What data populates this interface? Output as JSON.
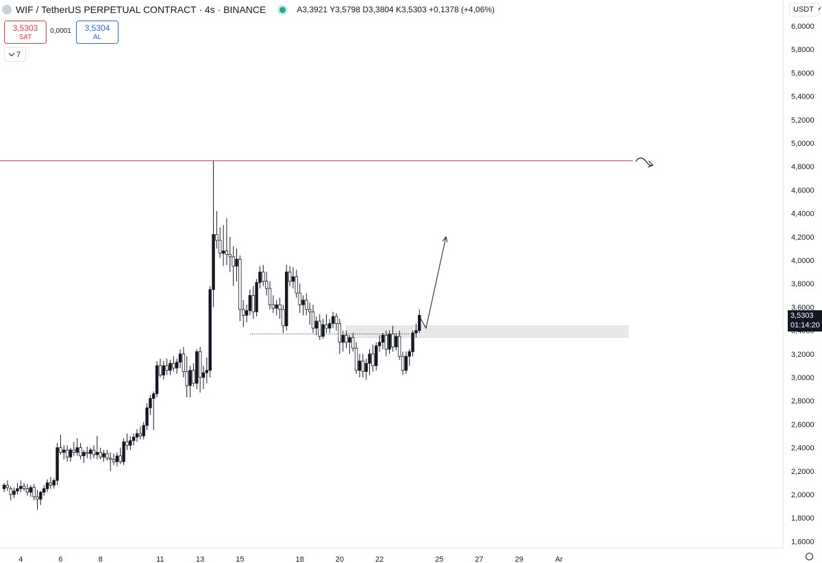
{
  "header": {
    "title": "WIF / TetherUS PERPETUAL CONTRACT · 4s · BINANCE",
    "ohlc_text": "A3,3921  Y3,5798  D3,3804  K3,5303  +0,1378 (+4,06%)"
  },
  "trade": {
    "sell_price": "3,5303",
    "sell_label": "SAT",
    "spread": "0,0001",
    "buy_price": "3,5304",
    "buy_label": "AL"
  },
  "indicator_count": "7",
  "currency": "USDT",
  "last_price": {
    "value": "3,5303",
    "countdown": "01:14:20"
  },
  "colors": {
    "resistance": "#f23645",
    "accent": "#2962ff",
    "zone": "#e0e0e0"
  },
  "icons": [
    "symbol-logo-icon",
    "live-status-icon",
    "chevron-down-icon",
    "settings-gear-icon",
    "alert-icon"
  ],
  "chart_data": {
    "type": "candlestick",
    "y_ticks": [
      "6,0000",
      "5,8000",
      "5,6000",
      "5,4000",
      "5,2000",
      "5,0000",
      "4,8000",
      "4,6000",
      "4,4000",
      "4,2000",
      "4,0000",
      "3,8000",
      "3,6000",
      "3,4000",
      "3,2000",
      "3,0000",
      "2,8000",
      "2,6000",
      "2,4000",
      "2,2000",
      "2,0000",
      "1,8000",
      "1,6000"
    ],
    "x_ticks": [
      {
        "label": "4",
        "i": 5
      },
      {
        "label": "6",
        "i": 17
      },
      {
        "label": "8",
        "i": 29
      },
      {
        "label": "11",
        "i": 47
      },
      {
        "label": "13",
        "i": 59
      },
      {
        "label": "15",
        "i": 71
      },
      {
        "label": "18",
        "i": 89
      },
      {
        "label": "20",
        "i": 101
      },
      {
        "label": "22",
        "i": 113
      },
      {
        "label": "25",
        "i": 131
      },
      {
        "label": "27",
        "i": 143
      },
      {
        "label": "29",
        "i": 155
      },
      {
        "label": "Ar",
        "i": 167
      }
    ],
    "ylim": [
      1.55,
      6.05
    ],
    "resistance": 4.85,
    "support_level": 3.37,
    "zone": [
      3.34,
      3.44
    ],
    "projection": [
      [
        125,
        3.52
      ],
      [
        127,
        3.42
      ],
      [
        133,
        4.2
      ]
    ],
    "candles": [
      [
        2.05,
        2.1,
        2.02,
        2.08
      ],
      [
        2.08,
        2.12,
        2.03,
        2.06
      ],
      [
        2.05,
        2.07,
        1.95,
        2.0
      ],
      [
        2.0,
        2.06,
        1.97,
        2.03
      ],
      [
        2.03,
        2.1,
        2.0,
        2.05
      ],
      [
        2.05,
        2.12,
        2.02,
        2.07
      ],
      [
        2.07,
        2.1,
        2.03,
        2.05
      ],
      [
        2.05,
        2.09,
        1.99,
        2.02
      ],
      [
        2.02,
        2.08,
        1.98,
        2.06
      ],
      [
        2.06,
        2.09,
        1.95,
        1.98
      ],
      [
        1.98,
        2.04,
        1.87,
        1.96
      ],
      [
        1.96,
        2.03,
        1.91,
        2.02
      ],
      [
        2.02,
        2.08,
        1.99,
        2.05
      ],
      [
        2.05,
        2.13,
        2.02,
        2.1
      ],
      [
        2.1,
        2.15,
        2.05,
        2.08
      ],
      [
        2.08,
        2.14,
        2.05,
        2.12
      ],
      [
        2.12,
        2.44,
        2.08,
        2.4
      ],
      [
        2.4,
        2.51,
        2.34,
        2.36
      ],
      [
        2.36,
        2.42,
        2.3,
        2.38
      ],
      [
        2.38,
        2.42,
        2.28,
        2.32
      ],
      [
        2.32,
        2.4,
        2.28,
        2.38
      ],
      [
        2.38,
        2.45,
        2.33,
        2.36
      ],
      [
        2.36,
        2.48,
        2.33,
        2.4
      ],
      [
        2.4,
        2.44,
        2.3,
        2.33
      ],
      [
        2.33,
        2.38,
        2.27,
        2.36
      ],
      [
        2.36,
        2.41,
        2.31,
        2.35
      ],
      [
        2.35,
        2.4,
        2.3,
        2.38
      ],
      [
        2.38,
        2.42,
        2.31,
        2.34
      ],
      [
        2.34,
        2.5,
        2.3,
        2.36
      ],
      [
        2.36,
        2.4,
        2.3,
        2.32
      ],
      [
        2.32,
        2.38,
        2.28,
        2.35
      ],
      [
        2.35,
        2.38,
        2.29,
        2.31
      ],
      [
        2.31,
        2.36,
        2.2,
        2.3
      ],
      [
        2.3,
        2.35,
        2.25,
        2.28
      ],
      [
        2.28,
        2.36,
        2.24,
        2.33
      ],
      [
        2.33,
        2.4,
        2.26,
        2.28
      ],
      [
        2.28,
        2.48,
        2.25,
        2.45
      ],
      [
        2.45,
        2.52,
        2.38,
        2.42
      ],
      [
        2.42,
        2.5,
        2.38,
        2.46
      ],
      [
        2.46,
        2.52,
        2.42,
        2.49
      ],
      [
        2.49,
        2.56,
        2.45,
        2.52
      ],
      [
        2.52,
        2.58,
        2.47,
        2.5
      ],
      [
        2.5,
        2.62,
        2.47,
        2.59
      ],
      [
        2.59,
        2.78,
        2.55,
        2.74
      ],
      [
        2.74,
        2.85,
        2.68,
        2.82
      ],
      [
        2.82,
        2.88,
        2.55,
        2.86
      ],
      [
        2.86,
        3.14,
        2.83,
        3.1
      ],
      [
        3.1,
        3.16,
        3.0,
        3.02
      ],
      [
        3.02,
        3.14,
        2.98,
        3.1
      ],
      [
        3.1,
        3.16,
        3.02,
        3.06
      ],
      [
        3.06,
        3.15,
        3.02,
        3.12
      ],
      [
        3.12,
        3.18,
        3.05,
        3.08
      ],
      [
        3.08,
        3.16,
        3.03,
        3.13
      ],
      [
        3.13,
        3.24,
        3.08,
        3.2
      ],
      [
        3.2,
        3.26,
        3.0,
        3.05
      ],
      [
        3.05,
        3.18,
        2.83,
        2.93
      ],
      [
        2.93,
        3.1,
        2.83,
        3.06
      ],
      [
        3.06,
        3.12,
        2.92,
        2.95
      ],
      [
        2.95,
        3.24,
        2.9,
        3.22
      ],
      [
        3.22,
        3.26,
        2.87,
        3.0
      ],
      [
        3.0,
        3.1,
        2.9,
        3.04
      ],
      [
        3.04,
        3.17,
        2.95,
        3.06
      ],
      [
        3.06,
        3.78,
        3.0,
        3.75
      ],
      [
        3.75,
        4.85,
        3.6,
        4.22
      ],
      [
        4.22,
        4.42,
        4.1,
        4.17
      ],
      [
        4.17,
        4.28,
        4.02,
        4.06
      ],
      [
        4.06,
        4.3,
        3.95,
        4.08
      ],
      [
        4.08,
        4.36,
        3.96,
        4.05
      ],
      [
        4.05,
        4.2,
        3.9,
        4.03
      ],
      [
        4.03,
        4.12,
        3.78,
        3.95
      ],
      [
        3.95,
        4.1,
        3.82,
        4.01
      ],
      [
        4.01,
        4.04,
        3.48,
        3.58
      ],
      [
        3.58,
        3.66,
        3.43,
        3.53
      ],
      [
        3.53,
        3.62,
        3.47,
        3.57
      ],
      [
        3.57,
        3.75,
        3.53,
        3.7
      ],
      [
        3.7,
        3.78,
        3.5,
        3.56
      ],
      [
        3.56,
        3.84,
        3.52,
        3.81
      ],
      [
        3.81,
        3.95,
        3.76,
        3.9
      ],
      [
        3.9,
        3.96,
        3.78,
        3.82
      ],
      [
        3.82,
        3.9,
        3.7,
        3.76
      ],
      [
        3.76,
        3.82,
        3.58,
        3.62
      ],
      [
        3.62,
        3.7,
        3.55,
        3.59
      ],
      [
        3.59,
        3.66,
        3.53,
        3.62
      ],
      [
        3.62,
        3.68,
        3.5,
        3.58
      ],
      [
        3.58,
        3.62,
        3.38,
        3.44
      ],
      [
        3.44,
        3.96,
        3.4,
        3.9
      ],
      [
        3.9,
        3.95,
        3.78,
        3.82
      ],
      [
        3.82,
        3.94,
        3.76,
        3.86
      ],
      [
        3.86,
        3.92,
        3.68,
        3.72
      ],
      [
        3.72,
        3.8,
        3.55,
        3.62
      ],
      [
        3.62,
        3.7,
        3.53,
        3.66
      ],
      [
        3.66,
        3.72,
        3.53,
        3.58
      ],
      [
        3.58,
        3.64,
        3.45,
        3.56
      ],
      [
        3.56,
        3.62,
        3.38,
        3.42
      ],
      [
        3.42,
        3.52,
        3.36,
        3.48
      ],
      [
        3.48,
        3.54,
        3.32,
        3.35
      ],
      [
        3.35,
        3.5,
        3.33,
        3.45
      ],
      [
        3.45,
        3.54,
        3.38,
        3.42
      ],
      [
        3.42,
        3.5,
        3.38,
        3.46
      ],
      [
        3.46,
        3.56,
        3.42,
        3.52
      ],
      [
        3.52,
        3.55,
        3.4,
        3.46
      ],
      [
        3.46,
        3.5,
        3.2,
        3.3
      ],
      [
        3.3,
        3.4,
        3.22,
        3.36
      ],
      [
        3.36,
        3.4,
        3.25,
        3.3
      ],
      [
        3.3,
        3.36,
        3.2,
        3.34
      ],
      [
        3.34,
        3.38,
        3.22,
        3.25
      ],
      [
        3.25,
        3.3,
        3.03,
        3.06
      ],
      [
        3.06,
        3.2,
        3.0,
        3.14
      ],
      [
        3.14,
        3.2,
        3.0,
        3.05
      ],
      [
        3.05,
        3.16,
        2.98,
        3.12
      ],
      [
        3.12,
        3.24,
        3.02,
        3.2
      ],
      [
        3.2,
        3.28,
        3.05,
        3.1
      ],
      [
        3.1,
        3.3,
        3.06,
        3.27
      ],
      [
        3.27,
        3.36,
        3.22,
        3.3
      ],
      [
        3.3,
        3.38,
        3.24,
        3.36
      ],
      [
        3.36,
        3.4,
        3.18,
        3.24
      ],
      [
        3.24,
        3.4,
        3.2,
        3.37
      ],
      [
        3.37,
        3.44,
        3.22,
        3.26
      ],
      [
        3.26,
        3.38,
        3.23,
        3.35
      ],
      [
        3.35,
        3.4,
        3.15,
        3.18
      ],
      [
        3.18,
        3.22,
        3.02,
        3.06
      ],
      [
        3.06,
        3.22,
        3.03,
        3.18
      ],
      [
        3.18,
        3.24,
        3.1,
        3.22
      ],
      [
        3.22,
        3.4,
        3.18,
        3.38
      ],
      [
        3.38,
        3.46,
        3.34,
        3.4
      ],
      [
        3.4,
        3.58,
        3.38,
        3.53
      ]
    ]
  }
}
